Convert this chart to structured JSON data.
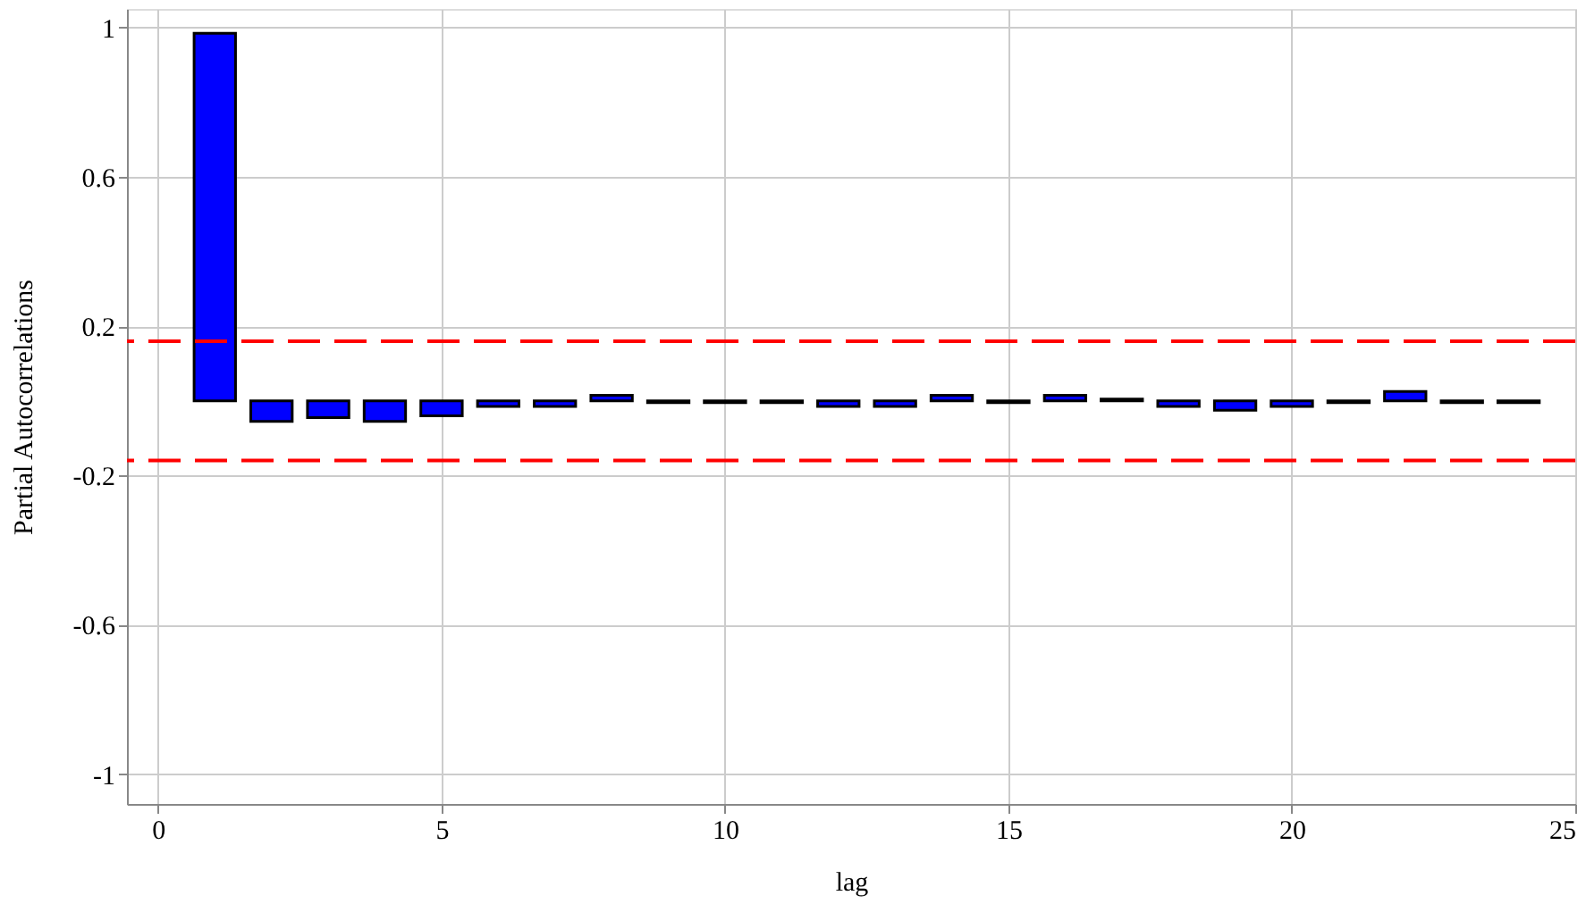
{
  "chart_data": {
    "type": "bar",
    "xlabel": "lag",
    "ylabel": "Partial Autocorrelations",
    "x": [
      1,
      2,
      3,
      4,
      5,
      6,
      7,
      8,
      9,
      10,
      11,
      12,
      13,
      14,
      15,
      16,
      17,
      18,
      19,
      20,
      21,
      22,
      23,
      24
    ],
    "values": [
      0.985,
      -0.055,
      -0.045,
      -0.055,
      -0.04,
      -0.015,
      -0.015,
      0.015,
      -0.005,
      -0.005,
      -0.005,
      -0.015,
      -0.015,
      0.015,
      -0.005,
      0.015,
      0.005,
      -0.015,
      -0.025,
      -0.015,
      -0.005,
      0.025,
      -0.005,
      -0.005
    ],
    "color": "#0000ff",
    "xlim": [
      -0.55,
      25
    ],
    "xticks": [
      0,
      5,
      10,
      15,
      20,
      25
    ],
    "ylim": [
      -1.08,
      1.05
    ],
    "yticks": [
      -1,
      -0.6,
      -0.2,
      0.2,
      0.6,
      1
    ],
    "ref_lines": [
      {
        "axis": "y",
        "value": 0.16,
        "color": "#ff0000",
        "line_style": "dashed"
      },
      {
        "axis": "y",
        "value": -0.16,
        "color": "#ff0000",
        "line_style": "dashed"
      }
    ],
    "grid": true
  }
}
